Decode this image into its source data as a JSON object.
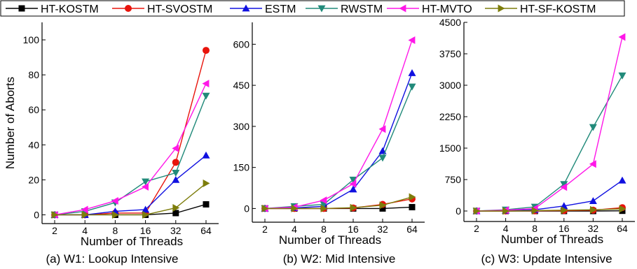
{
  "legend": {
    "entries": [
      "HT-KOSTM",
      "HT-SVOSTM",
      "ESTM",
      "RWSTM",
      "HT-MVTO",
      "HT-SF-KOSTM"
    ]
  },
  "series_styles": [
    {
      "name": "HT-KOSTM",
      "color": "#000000",
      "marker": "square"
    },
    {
      "name": "HT-SVOSTM",
      "color": "#e8140c",
      "marker": "circle"
    },
    {
      "name": "ESTM",
      "color": "#1010e0",
      "marker": "triangle-up"
    },
    {
      "name": "RWSTM",
      "color": "#218a7a",
      "marker": "triangle-down"
    },
    {
      "name": "HT-MVTO",
      "color": "#ff17e8",
      "marker": "triangle-left"
    },
    {
      "name": "HT-SF-KOSTM",
      "color": "#7d7d0b",
      "marker": "triangle-right"
    }
  ],
  "chart_data": [
    {
      "type": "line",
      "caption": "(a) W1: Lookup Intensive",
      "xlabel": "Number of Threads",
      "ylabel": "Number of Aborts",
      "categories": [
        "2",
        "4",
        "8",
        "16",
        "32",
        "64"
      ],
      "yticks": [
        "0",
        "20",
        "40",
        "60",
        "80",
        "100"
      ],
      "ylim": [
        -5,
        110
      ],
      "grid": false,
      "legend_position": "top",
      "series": [
        {
          "name": "HT-KOSTM",
          "values": [
            0,
            0,
            0,
            0,
            1,
            6
          ]
        },
        {
          "name": "HT-SVOSTM",
          "values": [
            0,
            0,
            1,
            1,
            30,
            94
          ]
        },
        {
          "name": "ESTM",
          "values": [
            0,
            0,
            2,
            3,
            20,
            34
          ]
        },
        {
          "name": "RWSTM",
          "values": [
            0,
            2,
            7,
            19,
            24,
            68
          ]
        },
        {
          "name": "HT-MVTO",
          "values": [
            0,
            3,
            8,
            16,
            38,
            75
          ]
        },
        {
          "name": "HT-SF-KOSTM",
          "values": [
            0,
            0,
            0,
            0,
            4,
            18
          ]
        }
      ]
    },
    {
      "type": "line",
      "caption": "(b) W2: Mid Intensive",
      "xlabel": "Number of Threads",
      "ylabel": "",
      "categories": [
        "2",
        "4",
        "8",
        "16",
        "32",
        "64"
      ],
      "yticks": [
        "0",
        "150",
        "300",
        "450",
        "600"
      ],
      "ylim": [
        -50,
        680
      ],
      "grid": false,
      "series": [
        {
          "name": "HT-KOSTM",
          "values": [
            0,
            0,
            0,
            0,
            0,
            5
          ]
        },
        {
          "name": "HT-SVOSTM",
          "values": [
            0,
            0,
            0,
            2,
            15,
            35
          ]
        },
        {
          "name": "ESTM",
          "values": [
            0,
            2,
            8,
            70,
            210,
            495
          ]
        },
        {
          "name": "RWSTM",
          "values": [
            0,
            8,
            15,
            105,
            185,
            445
          ]
        },
        {
          "name": "HT-MVTO",
          "values": [
            0,
            5,
            30,
            90,
            290,
            615
          ]
        },
        {
          "name": "HT-SF-KOSTM",
          "values": [
            0,
            0,
            0,
            3,
            12,
            42
          ]
        }
      ]
    },
    {
      "type": "line",
      "caption": "(c) W3: Update Intensive",
      "xlabel": "Number of Threads",
      "ylabel": "",
      "categories": [
        "2",
        "4",
        "8",
        "16",
        "32",
        "64"
      ],
      "yticks": [
        "0",
        "750",
        "1500",
        "2250",
        "3000",
        "3750",
        "4500"
      ],
      "ylim": [
        -250,
        4500
      ],
      "grid": false,
      "series": [
        {
          "name": "HT-KOSTM",
          "values": [
            0,
            0,
            0,
            0,
            0,
            5
          ]
        },
        {
          "name": "HT-SVOSTM",
          "values": [
            0,
            0,
            5,
            10,
            20,
            80
          ]
        },
        {
          "name": "ESTM",
          "values": [
            0,
            10,
            30,
            120,
            240,
            730
          ]
        },
        {
          "name": "RWSTM",
          "values": [
            0,
            30,
            100,
            640,
            2000,
            3230
          ]
        },
        {
          "name": "HT-MVTO",
          "values": [
            0,
            20,
            60,
            570,
            1120,
            4150
          ]
        },
        {
          "name": "HT-SF-KOSTM",
          "values": [
            0,
            0,
            10,
            20,
            30,
            50
          ]
        }
      ]
    }
  ]
}
